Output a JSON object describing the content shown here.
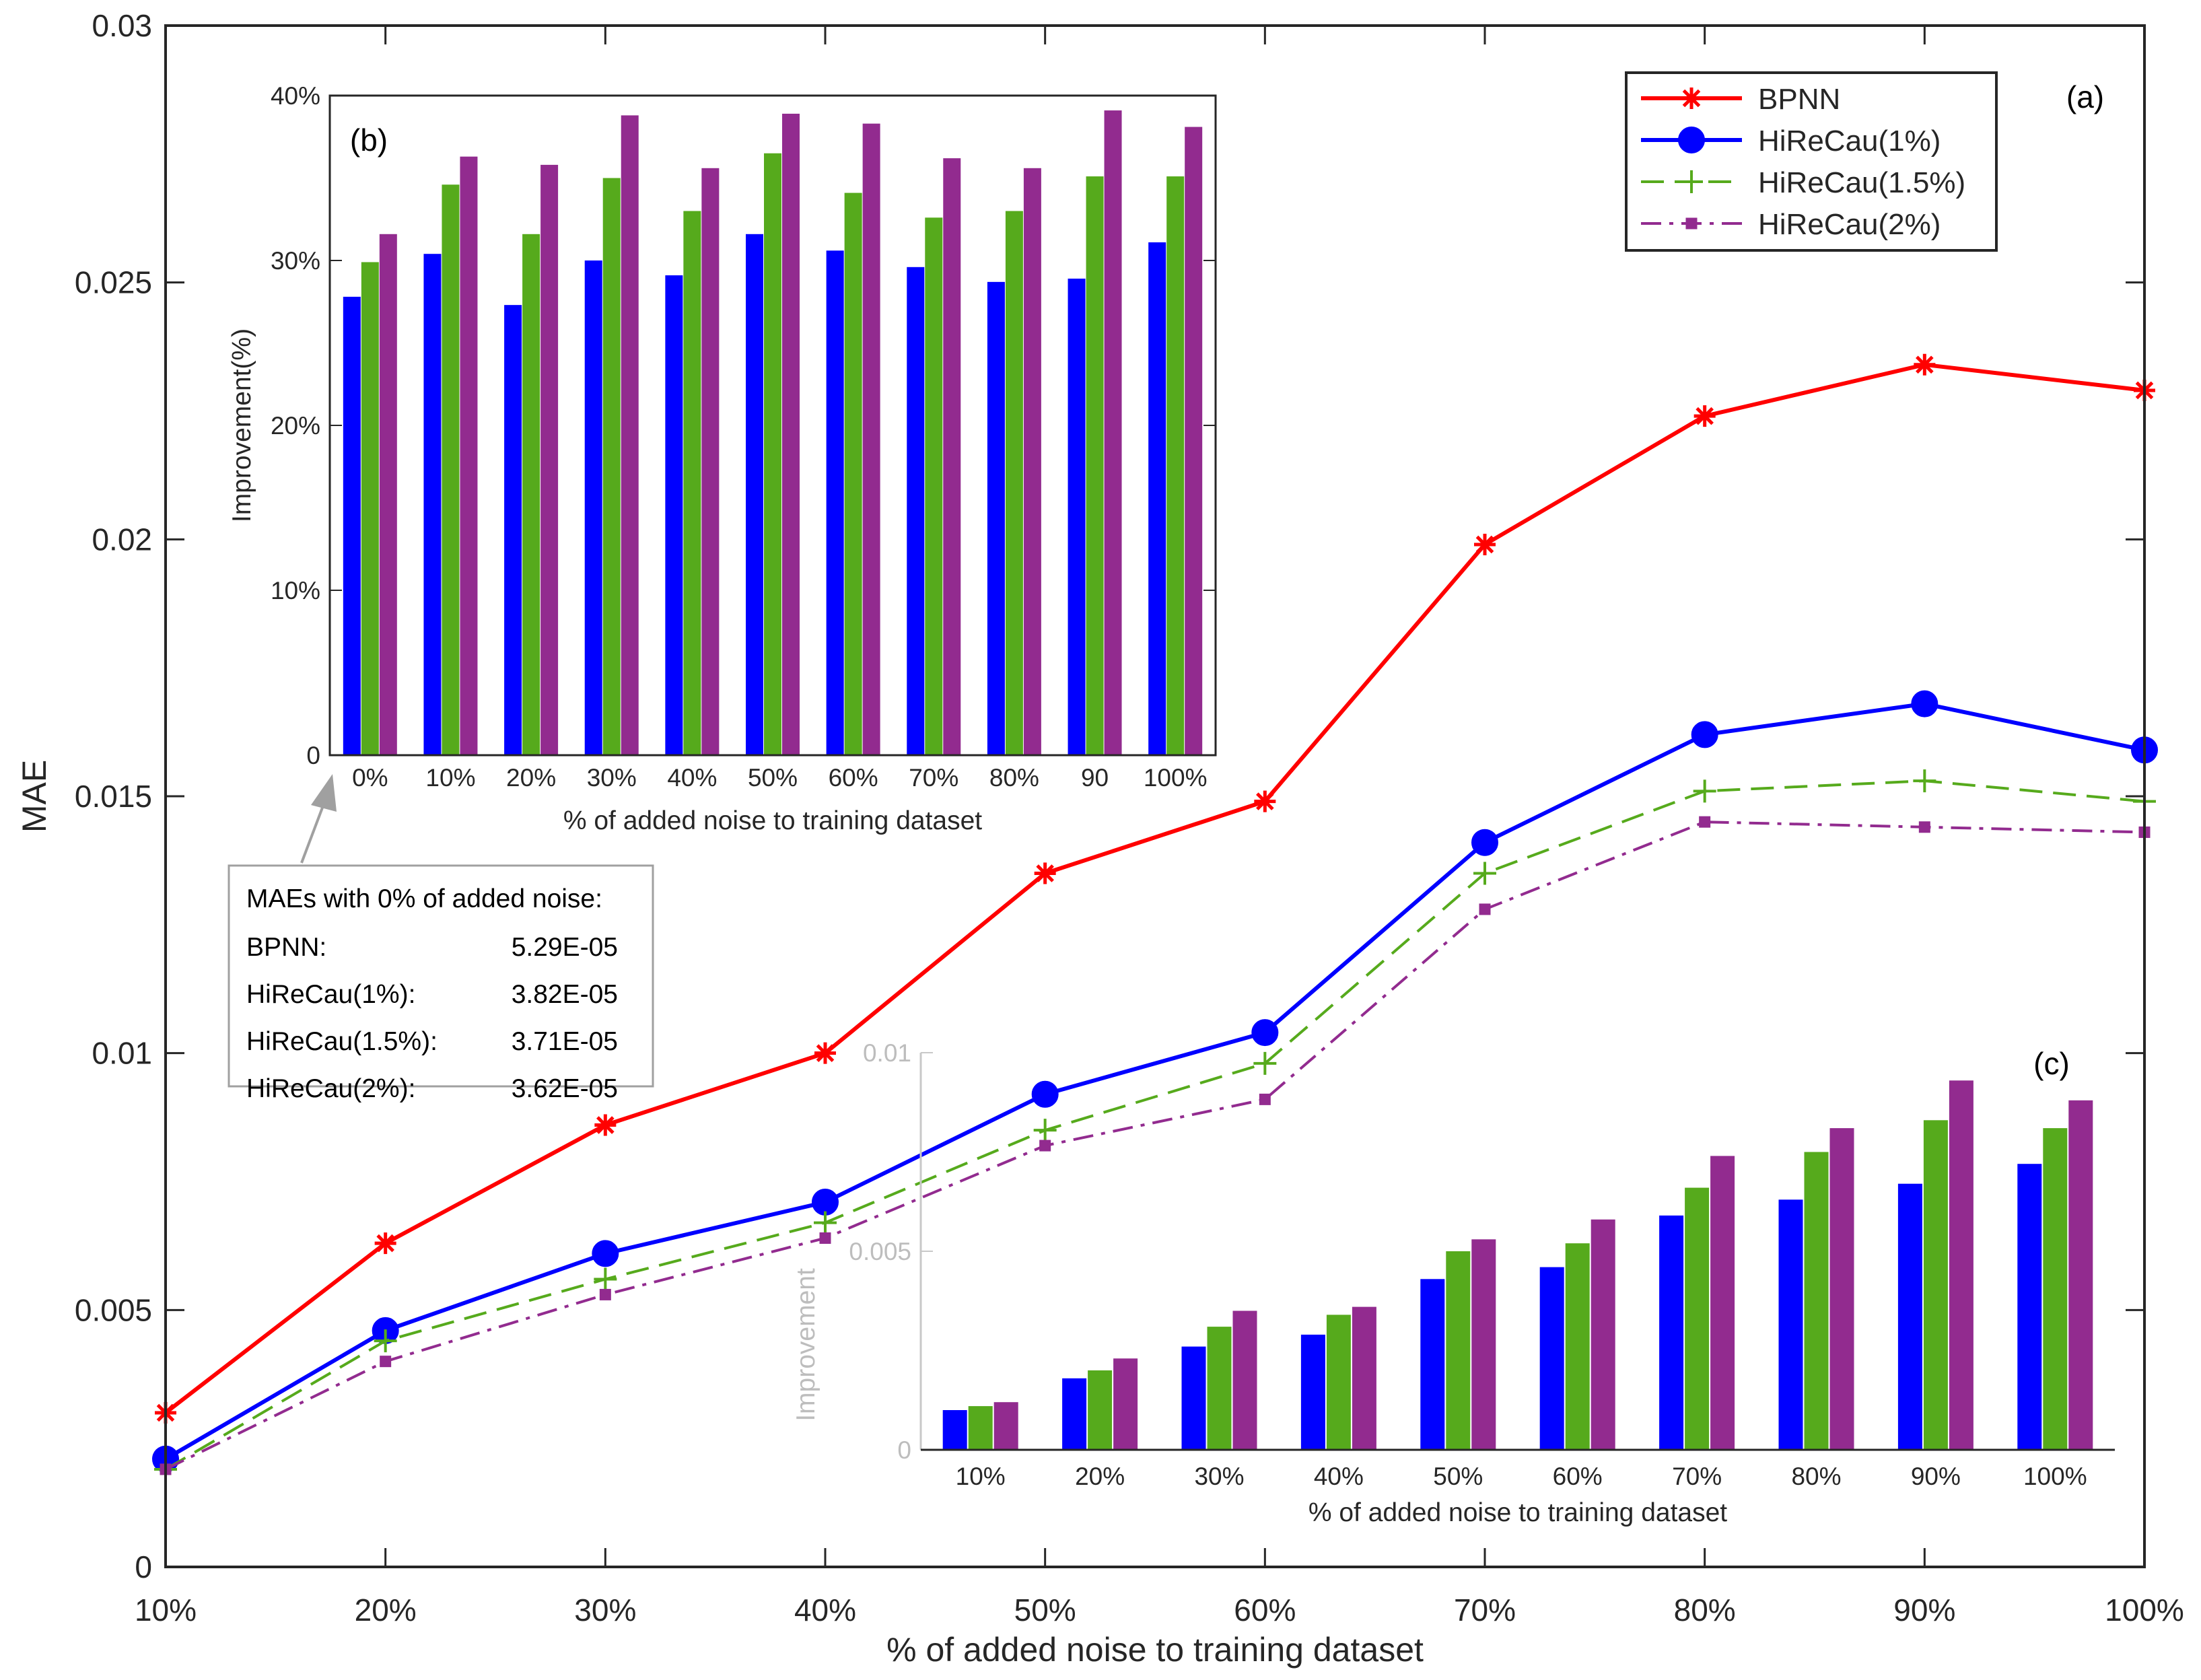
{
  "colors": {
    "bpnn": "#ff0000",
    "hirecau_1": "#0000ff",
    "hirecau_15": "#56aa1c",
    "hirecau_2": "#922b8f",
    "axis": "#262626",
    "note_border": "#a0a0a0"
  },
  "chart_data": [
    {
      "id": "a",
      "panel_label": "(a)",
      "type": "line",
      "xlabel": "% of added noise to training dataset",
      "ylabel": "MAE",
      "categories": [
        "10%",
        "20%",
        "30%",
        "40%",
        "50%",
        "60%",
        "70%",
        "80%",
        "90%",
        "100%"
      ],
      "ylim": [
        0,
        0.03
      ],
      "yticks": [
        0,
        0.005,
        0.01,
        0.015,
        0.02,
        0.025,
        0.03
      ],
      "ytick_labels": [
        "0",
        "0.005",
        "0.01",
        "0.015",
        "0.02",
        "0.025",
        "0.03"
      ],
      "legend_position": "top-right",
      "series": [
        {
          "name": "BPNN",
          "color_key": "bpnn",
          "style": "solid",
          "marker": "asterisk",
          "values": [
            0.003,
            0.0063,
            0.0086,
            0.01,
            0.0135,
            0.0149,
            0.0199,
            0.0224,
            0.0234,
            0.0229
          ]
        },
        {
          "name": "HiReCau(1%)",
          "color_key": "hirecau_1",
          "style": "solid",
          "marker": "circle",
          "values": [
            0.0021,
            0.0046,
            0.0061,
            0.0071,
            0.0092,
            0.0104,
            0.0141,
            0.0162,
            0.0168,
            0.0159
          ]
        },
        {
          "name": "HiReCau(1.5%)",
          "color_key": "hirecau_15",
          "style": "dashed",
          "marker": "plus",
          "values": [
            0.0019,
            0.0044,
            0.0056,
            0.0067,
            0.0085,
            0.0098,
            0.0135,
            0.0151,
            0.0153,
            0.0149
          ]
        },
        {
          "name": "HiReCau(2%)",
          "color_key": "hirecau_2",
          "style": "dashdot",
          "marker": "square",
          "values": [
            0.0019,
            0.004,
            0.0053,
            0.0064,
            0.0082,
            0.0091,
            0.0128,
            0.0145,
            0.0144,
            0.0143
          ]
        }
      ]
    },
    {
      "id": "b",
      "panel_label": "(b)",
      "type": "bar",
      "xlabel": "% of added noise to training dataset",
      "ylabel": "Improvement(%)",
      "categories": [
        "0%",
        "10%",
        "20%",
        "30%",
        "40%",
        "50%",
        "60%",
        "70%",
        "80%",
        "90",
        "100%"
      ],
      "ylim": [
        0,
        40
      ],
      "yticks": [
        0,
        10,
        20,
        30,
        40
      ],
      "ytick_labels": [
        "0",
        "10%",
        "20%",
        "30%",
        "40%"
      ],
      "series": [
        {
          "name": "HiReCau(1%)",
          "color_key": "hirecau_1",
          "values": [
            27.8,
            30.4,
            27.3,
            30.0,
            29.1,
            31.6,
            30.6,
            29.6,
            28.7,
            28.9,
            31.1
          ]
        },
        {
          "name": "HiReCau(1.5%)",
          "color_key": "hirecau_15",
          "values": [
            29.9,
            34.6,
            31.6,
            35.0,
            33.0,
            36.5,
            34.1,
            32.6,
            33.0,
            35.1,
            35.1
          ]
        },
        {
          "name": "HiReCau(2%)",
          "color_key": "hirecau_2",
          "values": [
            31.6,
            36.3,
            35.8,
            38.8,
            35.6,
            38.9,
            38.3,
            36.2,
            35.6,
            39.1,
            38.1
          ]
        }
      ]
    },
    {
      "id": "c",
      "panel_label": "(c)",
      "type": "bar",
      "xlabel": "% of added noise to training dataset",
      "ylabel": "Improvement",
      "categories": [
        "10%",
        "20%",
        "30%",
        "40%",
        "50%",
        "60%",
        "70%",
        "80%",
        "90%",
        "100%"
      ],
      "ylim": [
        0,
        0.01
      ],
      "yticks": [
        0,
        0.005,
        0.01
      ],
      "ytick_labels": [
        "0",
        "0.005",
        "0.01"
      ],
      "series": [
        {
          "name": "HiReCau(1%)",
          "color_key": "hirecau_1",
          "values": [
            0.001,
            0.0018,
            0.0026,
            0.0029,
            0.0043,
            0.0046,
            0.0059,
            0.0063,
            0.0067,
            0.0072
          ]
        },
        {
          "name": "HiReCau(1.5%)",
          "color_key": "hirecau_15",
          "values": [
            0.0011,
            0.002,
            0.0031,
            0.0034,
            0.005,
            0.0052,
            0.0066,
            0.0075,
            0.0083,
            0.0081
          ]
        },
        {
          "name": "HiReCau(2%)",
          "color_key": "hirecau_2",
          "values": [
            0.0012,
            0.0023,
            0.0035,
            0.0036,
            0.0053,
            0.0058,
            0.0074,
            0.0081,
            0.0093,
            0.0088
          ]
        }
      ]
    }
  ],
  "note": {
    "title": "MAEs with 0% of added noise:",
    "rows": [
      {
        "name": "BPNN:",
        "value": "5.29E-05"
      },
      {
        "name": "HiReCau(1%):",
        "value": "3.82E-05"
      },
      {
        "name": "HiReCau(1.5%):",
        "value": "3.71E-05"
      },
      {
        "name": "HiReCau(2%):",
        "value": "3.62E-05"
      }
    ]
  }
}
